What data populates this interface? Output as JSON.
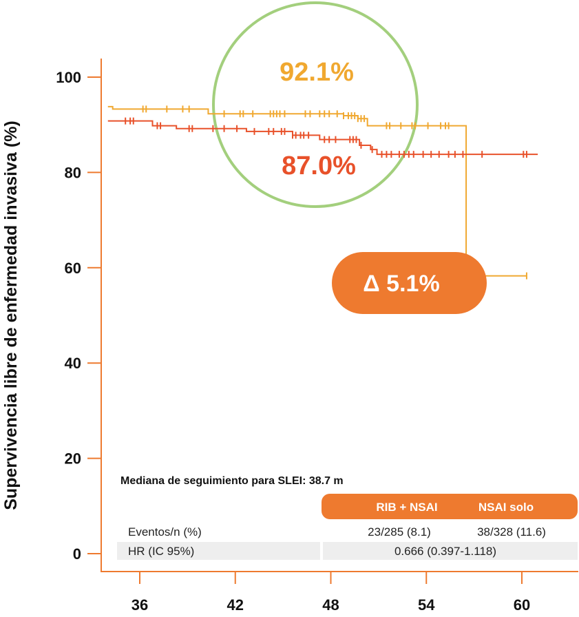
{
  "chart_data": {
    "type": "line",
    "ylabel": "Supervivencia libre de enfermedad invasiva (%)",
    "xlabel": "",
    "xlim": [
      33.5,
      61
    ],
    "ylim": [
      0,
      100
    ],
    "x_ticks": [
      "36",
      "42",
      "48",
      "54",
      "60"
    ],
    "y_ticks": [
      "0",
      "20",
      "40",
      "60",
      "80",
      "100"
    ],
    "grid": false,
    "colors": {
      "rib_nsai": "#f0a830",
      "nsai_solo": "#e8512a",
      "circle": "#a3cf7d",
      "accent": "#ee7a2f",
      "table_bg": "#eeeeee"
    },
    "series": [
      {
        "color": "#f0a830",
        "steps": [
          [
            34,
            93.8
          ],
          [
            34.3,
            93.3
          ],
          [
            40,
            93.3
          ],
          [
            40.3,
            92.3
          ],
          [
            48,
            92.3
          ],
          [
            48.8,
            91.9
          ],
          [
            49.7,
            91.3
          ],
          [
            50.3,
            89.8
          ],
          [
            56.3,
            89.8
          ],
          [
            56.5,
            58.3
          ],
          [
            60.3,
            58.3
          ]
        ],
        "censor_x": [
          36.2,
          36.4,
          37.7,
          38.7,
          39.1,
          41.3,
          42.3,
          42.5,
          43.1,
          44.2,
          44.4,
          44.6,
          44.8,
          45.1,
          46.4,
          46.7,
          47.3,
          47.6,
          47.9,
          48.4,
          48.8,
          49.1,
          49.3,
          49.5,
          49.7,
          49.9,
          50.1,
          51.5,
          51.7,
          52.4,
          53.1,
          53.3,
          54.1,
          54.9,
          55.2,
          55.4,
          60.3
        ]
      },
      {
        "color": "#e8512a",
        "steps": [
          [
            34,
            90.8
          ],
          [
            36.5,
            90.8
          ],
          [
            36.8,
            89.8
          ],
          [
            38,
            89.8
          ],
          [
            38.3,
            89.2
          ],
          [
            42.4,
            89.2
          ],
          [
            42.7,
            88.6
          ],
          [
            45.2,
            88.6
          ],
          [
            45.6,
            87.8
          ],
          [
            47,
            87.8
          ],
          [
            47.3,
            86.9
          ],
          [
            49.2,
            86.9
          ],
          [
            49.8,
            85.7
          ],
          [
            50.5,
            84.8
          ],
          [
            50.9,
            83.8
          ],
          [
            61,
            83.8
          ]
        ],
        "censor_x": [
          35.1,
          35.4,
          35.6,
          37.1,
          37.3,
          39.1,
          39.3,
          40.6,
          41.3,
          42.1,
          43.2,
          44.1,
          44.4,
          44.9,
          45.1,
          45.6,
          45.8,
          46.1,
          46.3,
          46.6,
          47.6,
          47.9,
          48.3,
          49.2,
          49.4,
          49.6,
          49.9,
          50.6,
          51.2,
          51.5,
          51.8,
          52.3,
          52.6,
          52.9,
          53.2,
          53.8,
          54.3,
          54.8,
          55.4,
          55.8,
          56.3,
          57.5,
          60.1,
          60.3
        ]
      }
    ],
    "annotations": {
      "rib_value": "92.1%",
      "nsai_value": "87.0%",
      "delta": "Δ 5.1%",
      "followup": "Mediana de seguimiento para SLEI: 38.7 m"
    },
    "table": {
      "headers": [
        "RIB + NSAI",
        "NSAI solo"
      ],
      "rows": [
        {
          "label": "Eventos/n (%)",
          "values": [
            "23/285 (8.1)",
            "38/328 (11.6)"
          ]
        },
        {
          "label": "HR (IC 95%)",
          "values": [
            "0.666 (0.397-1.118)"
          ]
        }
      ]
    }
  }
}
